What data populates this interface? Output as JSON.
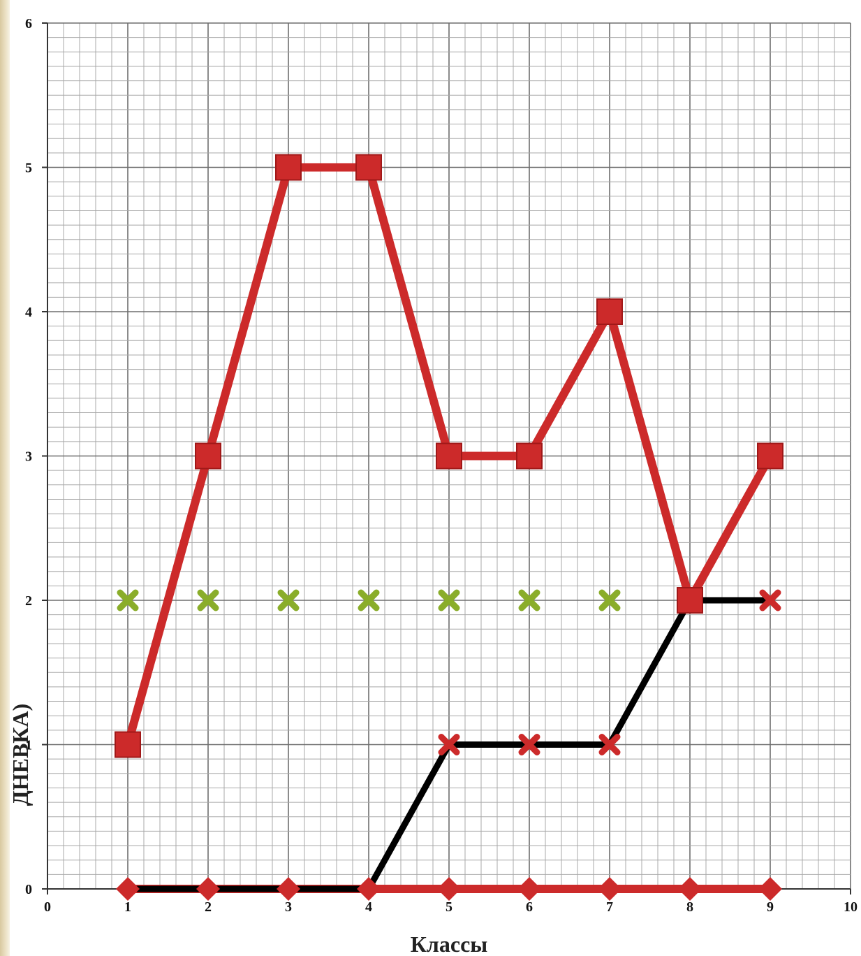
{
  "chart_data": {
    "type": "line",
    "title": "",
    "xlabel": "Классы",
    "ylabel": "ДНЕВКА)",
    "xlim": [
      0,
      10
    ],
    "ylim": [
      0,
      6
    ],
    "x_ticks": [
      "0",
      "1",
      "2",
      "3",
      "4",
      "5",
      "6",
      "7",
      "8",
      "9",
      "10"
    ],
    "y_ticks": [
      "0",
      "1",
      "2",
      "3",
      "4",
      "5",
      "6"
    ],
    "grid": true,
    "legend": "none",
    "series": [
      {
        "color": "#cc2a2a",
        "marker": "square",
        "line": true,
        "x": [
          1,
          2,
          3,
          4,
          5,
          6,
          7,
          8,
          9
        ],
        "y": [
          1,
          3,
          5,
          5,
          3,
          3,
          4,
          2,
          3
        ]
      },
      {
        "color": "#cc2a2a",
        "marker": "diamond",
        "line": true,
        "x": [
          1,
          2,
          3,
          4,
          5,
          6,
          7,
          8,
          9
        ],
        "y": [
          0,
          0,
          0,
          0,
          0,
          0,
          0,
          0,
          0
        ]
      },
      {
        "color": "#cc2a2a",
        "marker": "x",
        "line": false,
        "x": [
          5,
          6,
          7,
          8,
          9
        ],
        "y": [
          1,
          1,
          1,
          2,
          2
        ]
      },
      {
        "color": "#8aad2a",
        "marker": "x",
        "line": false,
        "x": [
          1,
          2,
          3,
          4,
          5,
          6,
          7
        ],
        "y": [
          2,
          2,
          2,
          2,
          2,
          2,
          2
        ]
      },
      {
        "color": "#000000",
        "marker": "none",
        "line": true,
        "x": [
          1,
          2,
          3,
          4,
          5,
          6,
          7,
          8,
          9
        ],
        "y": [
          0,
          0,
          0,
          0,
          1,
          1,
          1,
          2,
          2
        ]
      }
    ]
  }
}
